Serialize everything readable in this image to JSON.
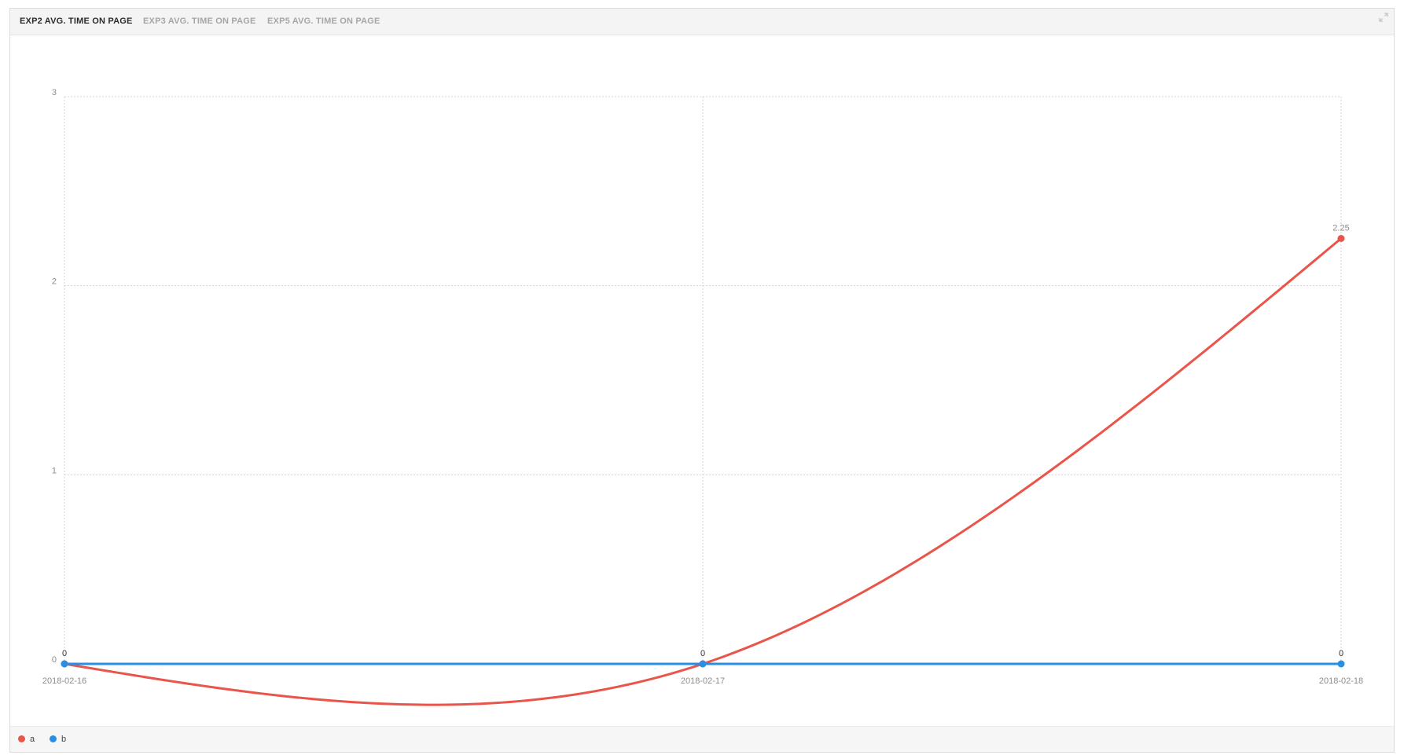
{
  "tabs": [
    {
      "label": "EXP2 AVG. TIME ON PAGE",
      "active": true
    },
    {
      "label": "EXP3 AVG. TIME ON PAGE",
      "active": false
    },
    {
      "label": "EXP5 AVG. TIME ON PAGE",
      "active": false
    }
  ],
  "icons": {
    "expand": "expand-icon"
  },
  "colors": {
    "series_a": "#e9554a",
    "series_b": "#2a8ee5",
    "grid": "#d4d4d4",
    "axis_text": "#8c8c8c"
  },
  "chart_data": {
    "type": "line",
    "x": [
      "2018-02-16",
      "2018-02-17",
      "2018-02-18"
    ],
    "ylim": [
      0,
      3
    ],
    "yticks": [
      "0",
      "1",
      "2",
      "3"
    ],
    "grid": true,
    "smooth": true,
    "legend_position": "bottom-left",
    "series": [
      {
        "name": "a",
        "values": [
          0,
          0,
          2.25
        ],
        "labels": [
          "",
          "",
          "2.25"
        ],
        "color": "#e9554a"
      },
      {
        "name": "b",
        "values": [
          0,
          0,
          0
        ],
        "labels": [
          "0",
          "0",
          "0"
        ],
        "color": "#2a8ee5"
      }
    ]
  }
}
